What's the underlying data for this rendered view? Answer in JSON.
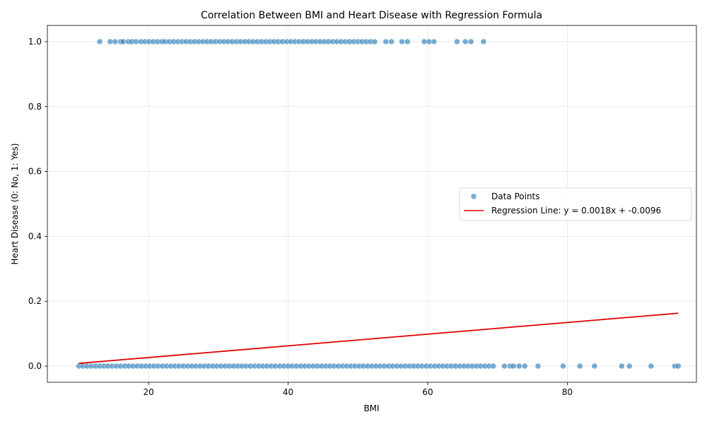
{
  "chart_data": {
    "type": "scatter",
    "title": "Correlation Between BMI and Heart Disease with Regression Formula",
    "xlabel": "BMI",
    "ylabel": "Heart Disease (0: No, 1: Yes)",
    "xlim": [
      5.5,
      98.5
    ],
    "ylim": [
      -0.05,
      1.05
    ],
    "xticks": [
      20,
      40,
      60,
      80
    ],
    "xtick_labels": [
      "20",
      "40",
      "60",
      "80"
    ],
    "yticks": [
      0.0,
      0.2,
      0.4,
      0.6,
      0.8,
      1.0
    ],
    "ytick_labels": [
      "0.0",
      "0.2",
      "0.4",
      "0.6",
      "0.8",
      "1.0"
    ],
    "grid": true,
    "legend_position": "center-right",
    "colors": {
      "points": "#1f77b4",
      "regression": "#e00000"
    },
    "series": [
      {
        "name": "Data Points",
        "kind": "scatter",
        "points_y1_x": [
          13.0,
          14.5,
          15.2,
          16.0,
          16.4,
          17.1,
          17.6,
          18.2,
          18.9,
          19.5,
          20.1,
          20.7,
          21.3,
          21.9,
          22.4,
          23.0,
          23.6,
          24.2,
          24.8,
          25.4,
          26.0,
          26.6,
          27.2,
          27.8,
          28.4,
          29.0,
          29.6,
          30.2,
          30.8,
          31.4,
          32.0,
          32.6,
          33.2,
          33.8,
          34.4,
          35.0,
          35.6,
          36.2,
          36.8,
          37.4,
          38.0,
          38.6,
          39.2,
          39.8,
          40.4,
          41.0,
          41.6,
          42.2,
          42.8,
          43.4,
          44.0,
          44.6,
          45.2,
          45.8,
          46.4,
          47.0,
          47.6,
          48.2,
          48.8,
          49.4,
          50.0,
          50.6,
          51.2,
          51.8,
          52.4,
          54.0,
          54.8,
          56.3,
          57.1,
          59.5,
          60.2,
          60.9,
          64.2,
          65.4,
          66.2,
          68.0
        ],
        "points_y0_x": [
          10.0,
          10.6,
          11.2,
          11.8,
          12.4,
          13.0,
          13.6,
          14.2,
          14.8,
          15.4,
          16.0,
          16.6,
          17.2,
          17.8,
          18.4,
          19.0,
          19.6,
          20.2,
          20.8,
          21.4,
          22.0,
          22.6,
          23.2,
          23.8,
          24.4,
          25.0,
          25.6,
          26.2,
          26.8,
          27.4,
          28.0,
          28.6,
          29.2,
          29.8,
          30.4,
          31.0,
          31.6,
          32.2,
          32.8,
          33.4,
          34.0,
          34.6,
          35.2,
          35.8,
          36.4,
          37.0,
          37.6,
          38.2,
          38.8,
          39.4,
          40.0,
          40.6,
          41.2,
          41.8,
          42.4,
          43.0,
          43.6,
          44.2,
          44.8,
          45.4,
          46.0,
          46.6,
          47.2,
          47.8,
          48.4,
          49.0,
          49.6,
          50.2,
          50.8,
          51.4,
          52.0,
          52.6,
          53.2,
          53.8,
          54.4,
          55.0,
          55.6,
          56.2,
          56.8,
          57.4,
          58.0,
          58.6,
          59.2,
          59.8,
          60.4,
          61.0,
          61.6,
          62.2,
          62.8,
          63.4,
          64.0,
          64.6,
          65.2,
          65.8,
          66.4,
          67.0,
          67.6,
          68.2,
          68.8,
          69.4,
          71.0,
          71.8,
          72.3,
          73.1,
          73.9,
          75.8,
          79.4,
          81.8,
          83.9,
          87.8,
          88.9,
          92.0,
          95.4,
          95.9
        ]
      },
      {
        "name": "Regression Line: y = 0.0018x + -0.0096",
        "kind": "line",
        "x": [
          10.0,
          95.9
        ],
        "y": [
          0.0084,
          0.163
        ]
      }
    ]
  }
}
